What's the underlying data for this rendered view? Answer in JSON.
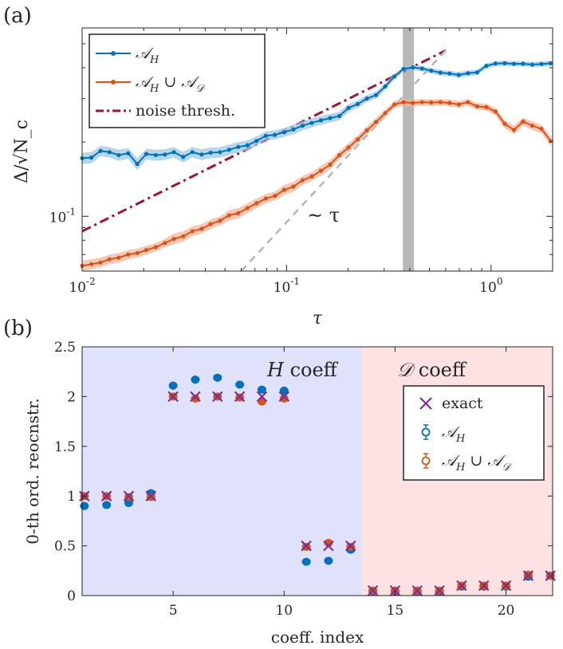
{
  "chart_data": [
    {
      "panel": "(a)",
      "type": "line",
      "xscale": "log",
      "yscale": "log",
      "xlabel": "τ",
      "ylabel": "Δ/√N_c",
      "xlim": [
        0.01,
        2
      ],
      "ylim": [
        0.06,
        0.58
      ],
      "x_tick_labels": [
        "10^-2",
        "10^-1",
        "10^0"
      ],
      "x_ticks": [
        0.01,
        0.1,
        1
      ],
      "y_tick_labels": [
        "10^-1"
      ],
      "y_ticks": [
        0.1
      ],
      "legend_position": "top-left",
      "vertical_band": {
        "from": 0.37,
        "to": 0.42,
        "color": "#b8b8b8"
      },
      "annotation": "~ τ",
      "series": [
        {
          "name": "𝒜_H",
          "color": "#0072BD",
          "band_color": "#9ecae1",
          "x": [
            0.01,
            0.0111,
            0.0123,
            0.0136,
            0.0151,
            0.0168,
            0.0186,
            0.0206,
            0.0229,
            0.0254,
            0.0281,
            0.0312,
            0.0346,
            0.0384,
            0.0425,
            0.0472,
            0.0523,
            0.058,
            0.0643,
            0.0713,
            0.0791,
            0.0877,
            0.0973,
            0.108,
            0.1197,
            0.1327,
            0.1472,
            0.1633,
            0.1811,
            0.2008,
            0.2227,
            0.247,
            0.2739,
            0.3037,
            0.3369,
            0.3736,
            0.4143,
            0.4595,
            0.5095,
            0.5651,
            0.6267,
            0.695,
            0.7708,
            0.8548,
            0.948,
            1.0513,
            1.1659,
            1.293,
            1.434,
            1.5903,
            1.7637,
            1.956
          ],
          "values": [
            0.172,
            0.173,
            0.184,
            0.182,
            0.177,
            0.18,
            0.163,
            0.179,
            0.177,
            0.178,
            0.182,
            0.174,
            0.182,
            0.178,
            0.181,
            0.182,
            0.186,
            0.191,
            0.194,
            0.202,
            0.212,
            0.214,
            0.219,
            0.225,
            0.233,
            0.239,
            0.245,
            0.25,
            0.255,
            0.275,
            0.285,
            0.3,
            0.31,
            0.336,
            0.369,
            0.396,
            0.401,
            0.397,
            0.389,
            0.382,
            0.379,
            0.374,
            0.38,
            0.383,
            0.407,
            0.416,
            0.417,
            0.415,
            0.415,
            0.412,
            0.414,
            0.417
          ],
          "band_halfwidth": [
            0.009,
            0.009,
            0.009,
            0.009,
            0.009,
            0.009,
            0.009,
            0.009,
            0.009,
            0.009,
            0.009,
            0.009,
            0.009,
            0.009,
            0.009,
            0.009,
            0.009,
            0.009,
            0.009,
            0.009,
            0.009,
            0.009,
            0.009,
            0.01,
            0.01,
            0.01,
            0.01,
            0.01,
            0.01,
            0.01,
            0.01,
            0.01,
            0.01,
            0.01,
            0.01,
            0.01,
            0.01,
            0.01,
            0.01,
            0.01,
            0.01,
            0.01,
            0.01,
            0.01,
            0.01,
            0.01,
            0.01,
            0.01,
            0.01,
            0.01,
            0.01,
            0.01
          ]
        },
        {
          "name": "𝒜_H ∪ 𝒜_𝒟",
          "color": "#D95319",
          "band_color": "#f4b69a",
          "x": [
            0.01,
            0.0111,
            0.0123,
            0.0136,
            0.0151,
            0.0168,
            0.0186,
            0.0206,
            0.0229,
            0.0254,
            0.0281,
            0.0312,
            0.0346,
            0.0384,
            0.0425,
            0.0472,
            0.0523,
            0.058,
            0.0643,
            0.0713,
            0.0791,
            0.0877,
            0.0973,
            0.108,
            0.1197,
            0.1327,
            0.1472,
            0.1633,
            0.1811,
            0.2008,
            0.2227,
            0.247,
            0.2739,
            0.3037,
            0.3369,
            0.3736,
            0.4143,
            0.4595,
            0.5095,
            0.5651,
            0.6267,
            0.695,
            0.7708,
            0.8548,
            0.948,
            1.0513,
            1.1659,
            1.293,
            1.434,
            1.5903,
            1.7637,
            1.956
          ],
          "values": [
            0.063,
            0.064,
            0.065,
            0.067,
            0.068,
            0.07,
            0.071,
            0.073,
            0.075,
            0.078,
            0.081,
            0.083,
            0.087,
            0.089,
            0.093,
            0.096,
            0.101,
            0.103,
            0.108,
            0.113,
            0.118,
            0.121,
            0.128,
            0.132,
            0.14,
            0.145,
            0.153,
            0.162,
            0.177,
            0.19,
            0.205,
            0.223,
            0.241,
            0.262,
            0.284,
            0.29,
            0.288,
            0.29,
            0.289,
            0.29,
            0.288,
            0.284,
            0.29,
            0.279,
            0.277,
            0.266,
            0.237,
            0.224,
            0.242,
            0.233,
            0.226,
            0.202
          ],
          "band_halfwidth": [
            0.003,
            0.003,
            0.003,
            0.003,
            0.003,
            0.003,
            0.003,
            0.003,
            0.003,
            0.003,
            0.004,
            0.004,
            0.004,
            0.004,
            0.004,
            0.004,
            0.005,
            0.005,
            0.005,
            0.005,
            0.005,
            0.005,
            0.006,
            0.006,
            0.006,
            0.006,
            0.007,
            0.007,
            0.007,
            0.008,
            0.008,
            0.008,
            0.009,
            0.009,
            0.009,
            0.009,
            0.009,
            0.009,
            0.009,
            0.009,
            0.009,
            0.009,
            0.009,
            0.009,
            0.009,
            0.009,
            0.009,
            0.009,
            0.009,
            0.009,
            0.009,
            0.009
          ]
        },
        {
          "name": "noise thresh.",
          "color": "#A2142F",
          "style": "dash-dot",
          "x": [
            0.01,
            0.6
          ],
          "values": [
            0.087,
            0.47
          ]
        },
        {
          "name": "",
          "color": "#b5b5b5",
          "style": "dashed",
          "x": [
            0.06,
            0.6
          ],
          "values": [
            0.06,
            0.47
          ]
        }
      ],
      "legend": [
        {
          "label": "𝒜_H",
          "text": "𝒜",
          "sub": "H"
        },
        {
          "label": "𝒜_H ∪ 𝒜_𝒟",
          "text": "𝒜",
          "sub": "H",
          "text2": " ∪ 𝒜",
          "sub2": "𝒟"
        },
        {
          "label": "noise thresh.",
          "text": "noise thresh."
        }
      ]
    },
    {
      "panel": "(b)",
      "type": "scatter",
      "xlabel": "coeff. index",
      "ylabel": "0-th ord. reocnstr.",
      "xlim": [
        0.9,
        22.1
      ],
      "ylim": [
        0,
        2.5
      ],
      "x_ticks": [
        5,
        10,
        15,
        20
      ],
      "x_tick_labels": [
        "5",
        "10",
        "15",
        "20"
      ],
      "y_ticks": [
        0,
        0.5,
        1,
        1.5,
        2,
        2.5
      ],
      "y_tick_labels": [
        "0",
        "0.5",
        "1",
        "1.5",
        "2",
        "2.5"
      ],
      "legend_position": "right",
      "regions": [
        {
          "label": "H coeff",
          "from": 0.9,
          "to": 13.5,
          "color": "#e0e2fb"
        },
        {
          "label": "𝒟 coeff",
          "from": 13.5,
          "to": 22.1,
          "color": "#fde2e4"
        }
      ],
      "x": [
        1,
        2,
        3,
        4,
        5,
        6,
        7,
        8,
        9,
        10,
        11,
        12,
        13,
        14,
        15,
        16,
        17,
        18,
        19,
        20,
        21,
        22
      ],
      "series": [
        {
          "name": "exact",
          "marker": "x",
          "color": "#7E2F8E",
          "values": [
            1,
            1,
            1,
            1,
            2,
            2,
            2,
            2,
            2,
            2,
            0.5,
            0.5,
            0.5,
            0.05,
            0.05,
            0.05,
            0.05,
            0.1,
            0.1,
            0.1,
            0.2,
            0.2
          ]
        },
        {
          "name": "𝒜_H",
          "marker": "o",
          "color": "#0072BD",
          "values": [
            0.9,
            0.91,
            0.93,
            1.03,
            2.11,
            2.17,
            2.19,
            2.12,
            2.07,
            2.06,
            0.34,
            0.35,
            0.46,
            0.04,
            0.04,
            0.04,
            0.04,
            0.09,
            0.09,
            0.09,
            0.19,
            0.2
          ]
        },
        {
          "name": "𝒜_H ∪ 𝒜_𝒟",
          "marker": "o",
          "color": "#D95319",
          "values": [
            1,
            1,
            0.99,
            0.99,
            2,
            1.98,
            2,
            1.99,
            1.95,
            1.98,
            0.49,
            0.53,
            0.49,
            0.05,
            0.05,
            0.05,
            0.05,
            0.1,
            0.1,
            0.1,
            0.21,
            0.2
          ]
        }
      ],
      "legend": [
        {
          "label": "exact",
          "text": "exact"
        },
        {
          "label": "𝒜_H",
          "text": "𝒜",
          "sub": "H"
        },
        {
          "label": "𝒜_H ∪ 𝒜_𝒟",
          "text": "𝒜",
          "sub": "H",
          "text2": " ∪ 𝒜",
          "sub2": "𝒟"
        }
      ]
    }
  ]
}
